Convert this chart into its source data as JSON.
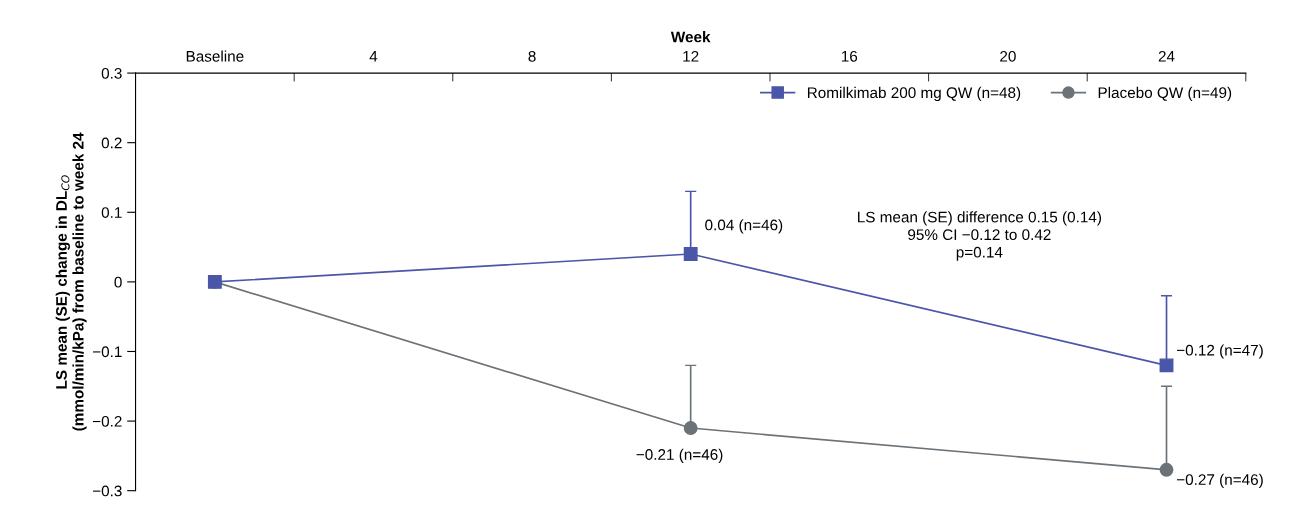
{
  "chart_data": {
    "type": "line",
    "xlabel": "Week",
    "ylabel": "LS mean (SE) change in DL$_{CO}$\n(mmol/min/kPa) from baseline to week 24",
    "x": [
      0,
      12,
      24
    ],
    "series": [
      {
        "name": "Romilkimab 200 mg QW (n=48)",
        "color": "#4a56a8",
        "marker": "square",
        "values": [
          0,
          0.04,
          -0.12
        ],
        "errors": [
          null,
          [
            0.04,
            0.13
          ],
          [
            -0.12,
            -0.02
          ]
        ],
        "value_labels": [
          null,
          "0.04 (n=46)",
          "−0.12 (n=47)"
        ]
      },
      {
        "name": "Placebo QW (n=49)",
        "color": "#6b7379",
        "marker": "circle",
        "values": [
          0,
          -0.21,
          -0.27
        ],
        "errors": [
          null,
          [
            -0.21,
            -0.12
          ],
          [
            -0.27,
            -0.15
          ]
        ],
        "value_labels": [
          null,
          "−0.21 (n=46)",
          "−0.27 (n=46)"
        ]
      }
    ],
    "xlim": [
      -2,
      26
    ],
    "xticks": [
      {
        "value": 0,
        "label": "Baseline"
      },
      {
        "value": 2,
        "label": null
      },
      4,
      {
        "value": 6,
        "label": null
      },
      8,
      {
        "value": 10,
        "label": null
      },
      12,
      {
        "value": 14,
        "label": null
      },
      16,
      {
        "value": 18,
        "label": null
      },
      20,
      {
        "value": 22,
        "label": null
      },
      24,
      {
        "value": 26,
        "label": null
      }
    ],
    "ylim": [
      -0.3,
      0.3
    ],
    "yticks": [
      {
        "value": -0.3,
        "label": "−0.3"
      },
      {
        "value": -0.2,
        "label": "−0.2"
      },
      {
        "value": -0.1,
        "label": "−0.1"
      },
      0,
      0.1,
      0.2,
      0.3
    ],
    "annotations": [
      "LS mean (SE) difference 0.15 (0.14)\n95% CI −0.12 to 0.42\np=0.14"
    ],
    "legend": "top right",
    "grid": false,
    "line_style": "solid"
  }
}
